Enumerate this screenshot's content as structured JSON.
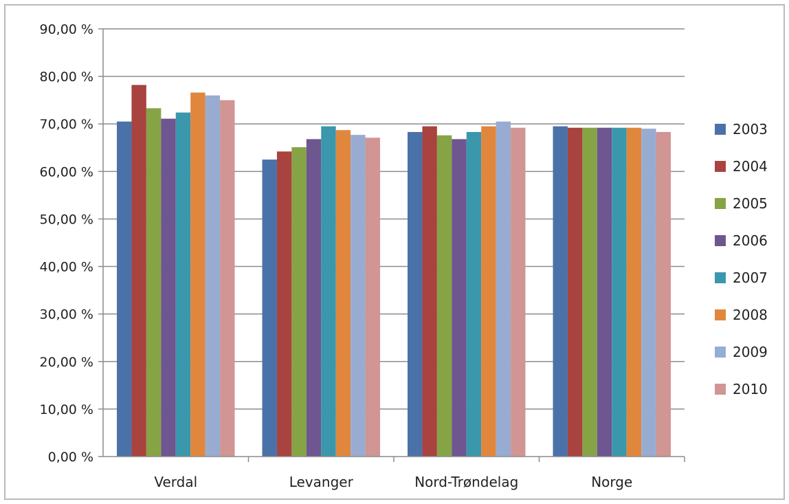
{
  "chart_data": {
    "type": "bar",
    "title": "",
    "xlabel": "",
    "ylabel": "",
    "categories": [
      "Verdal",
      "Levanger",
      "Nord-Trøndelag",
      "Norge"
    ],
    "ylim": [
      0,
      90
    ],
    "y_ticks": [
      "0,00 %",
      "10,00 %",
      "20,00 %",
      "30,00 %",
      "40,00 %",
      "50,00 %",
      "60,00 %",
      "70,00 %",
      "80,00 %",
      "90,00 %"
    ],
    "grid": true,
    "legend_position": "right",
    "series": [
      {
        "name": "2003",
        "color": "#4a72a9",
        "values": [
          70.5,
          62.5,
          68.3,
          69.5
        ]
      },
      {
        "name": "2004",
        "color": "#a84340",
        "values": [
          78.2,
          64.2,
          69.5,
          69.2
        ]
      },
      {
        "name": "2005",
        "color": "#86a445",
        "values": [
          73.3,
          65.1,
          67.6,
          69.2
        ]
      },
      {
        "name": "2006",
        "color": "#6e5690",
        "values": [
          71.1,
          66.8,
          66.8,
          69.2
        ]
      },
      {
        "name": "2007",
        "color": "#3b97ac",
        "values": [
          72.4,
          69.5,
          68.3,
          69.2
        ]
      },
      {
        "name": "2008",
        "color": "#e0873d",
        "values": [
          76.6,
          68.7,
          69.5,
          69.2
        ]
      },
      {
        "name": "2009",
        "color": "#98acd2",
        "values": [
          76.0,
          67.7,
          70.5,
          69.0
        ]
      },
      {
        "name": "2010",
        "color": "#d19594",
        "values": [
          75.0,
          67.1,
          69.2,
          68.3
        ]
      }
    ]
  }
}
